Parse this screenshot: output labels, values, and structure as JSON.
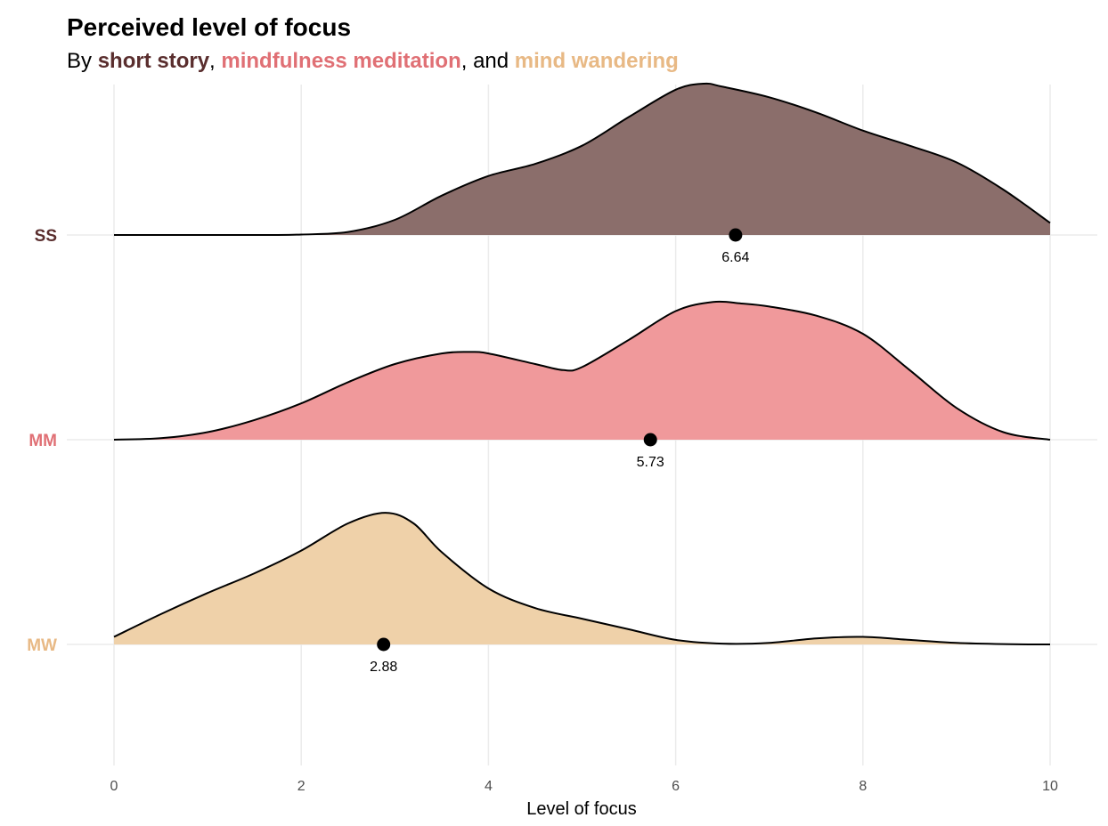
{
  "title": "Perceived level of focus",
  "subtitle": {
    "prefix": "By ",
    "ss": "short story",
    "sep1": ", ",
    "mm": "mindfulness meditation",
    "sep2": ", and ",
    "mw": "mind wandering"
  },
  "chart_data": {
    "type": "area",
    "subtype": "ridgeline-density",
    "xlabel": "Level of focus",
    "xlim": [
      0,
      10
    ],
    "x_ticks": [
      0,
      2,
      4,
      6,
      8,
      10
    ],
    "grid": true,
    "series": [
      {
        "name": "SS",
        "color": "#8b6e6b",
        "label_color": "#5a2e2e",
        "mean": 6.64,
        "mean_label": "6.64",
        "density": [
          [
            0,
            0
          ],
          [
            1.6,
            0
          ],
          [
            2,
            0.003
          ],
          [
            2.5,
            0.02
          ],
          [
            3,
            0.1
          ],
          [
            3.5,
            0.26
          ],
          [
            4,
            0.39
          ],
          [
            4.5,
            0.47
          ],
          [
            5,
            0.59
          ],
          [
            5.5,
            0.78
          ],
          [
            6,
            0.96
          ],
          [
            6.3,
            1.0
          ],
          [
            6.5,
            0.98
          ],
          [
            7,
            0.91
          ],
          [
            7.5,
            0.81
          ],
          [
            8,
            0.69
          ],
          [
            8.5,
            0.59
          ],
          [
            9,
            0.48
          ],
          [
            9.5,
            0.3
          ],
          [
            10,
            0.08
          ]
        ]
      },
      {
        "name": "MM",
        "color": "#f0999b",
        "label_color": "#e07075",
        "mean": 5.73,
        "mean_label": "5.73",
        "density": [
          [
            0,
            0
          ],
          [
            0.5,
            0.01
          ],
          [
            1,
            0.05
          ],
          [
            1.5,
            0.13
          ],
          [
            2,
            0.24
          ],
          [
            2.5,
            0.38
          ],
          [
            3,
            0.5
          ],
          [
            3.5,
            0.57
          ],
          [
            3.8,
            0.58
          ],
          [
            4,
            0.57
          ],
          [
            4.5,
            0.5
          ],
          [
            4.8,
            0.46
          ],
          [
            5,
            0.48
          ],
          [
            5.5,
            0.66
          ],
          [
            6,
            0.85
          ],
          [
            6.4,
            0.91
          ],
          [
            6.7,
            0.9
          ],
          [
            7,
            0.88
          ],
          [
            7.5,
            0.82
          ],
          [
            8,
            0.7
          ],
          [
            8.5,
            0.46
          ],
          [
            9,
            0.21
          ],
          [
            9.5,
            0.05
          ],
          [
            10,
            0
          ]
        ]
      },
      {
        "name": "MW",
        "color": "#efd1a9",
        "label_color": "#e8b985",
        "mean": 2.88,
        "mean_label": "2.88",
        "density": [
          [
            0,
            0.05
          ],
          [
            0.5,
            0.2
          ],
          [
            1,
            0.34
          ],
          [
            1.5,
            0.47
          ],
          [
            2,
            0.62
          ],
          [
            2.5,
            0.8
          ],
          [
            2.9,
            0.87
          ],
          [
            3.2,
            0.8
          ],
          [
            3.5,
            0.61
          ],
          [
            4,
            0.37
          ],
          [
            4.5,
            0.24
          ],
          [
            5,
            0.17
          ],
          [
            5.5,
            0.1
          ],
          [
            6,
            0.03
          ],
          [
            6.5,
            0.005
          ],
          [
            7,
            0.01
          ],
          [
            7.5,
            0.04
          ],
          [
            8,
            0.05
          ],
          [
            8.5,
            0.03
          ],
          [
            9,
            0.01
          ],
          [
            9.5,
            0.002
          ],
          [
            10,
            0
          ]
        ]
      }
    ]
  }
}
